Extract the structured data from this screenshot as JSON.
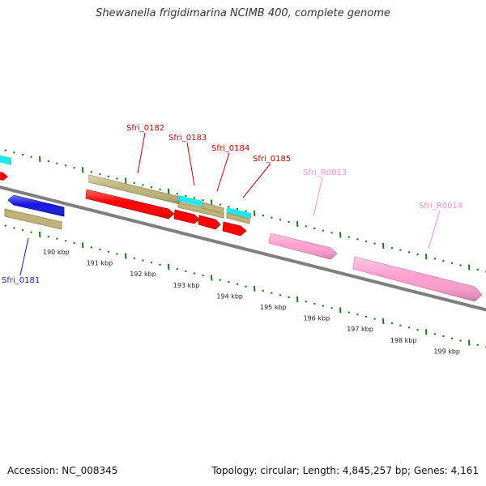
{
  "title": "Shewanella frigidimarina NCIMB 400, complete genome",
  "footer": {
    "accession": "Accession: NC_008345",
    "info": "Topology: circular; Length: 4,845,257 bp; Genes: 4,161"
  },
  "colors": {
    "backbone": "#7f7f7f",
    "tick": "#1a7a1a",
    "cds_forward": "#ff0000",
    "cds_reverse": "#1515e0",
    "gene": "#bfb37a",
    "rna": "#ff9fcf",
    "other": "#20e8e8",
    "label_red": "#cc0000",
    "label_pink": "#ff8fc0",
    "label_blue": "#1515e0"
  },
  "scale": {
    "unit": "kbp",
    "tick_labels": [
      "190 kbp",
      "191 kbp",
      "192 kbp",
      "193 kbp",
      "194 kbp",
      "195 kbp",
      "196 kbp",
      "197 kbp",
      "198 kbp",
      "199 kbp"
    ]
  },
  "genes": [
    {
      "label": "Sfri_0181",
      "color_key": "label_blue"
    },
    {
      "label": "Sfri_0182",
      "color_key": "label_red"
    },
    {
      "label": "Sfri_0183",
      "color_key": "label_red"
    },
    {
      "label": "Sfri_0184",
      "color_key": "label_red"
    },
    {
      "label": "Sfri_0185",
      "color_key": "label_red"
    },
    {
      "label": "Sfri_R0013",
      "color_key": "label_pink"
    },
    {
      "label": "Sfri_R0014",
      "color_key": "label_pink"
    }
  ]
}
